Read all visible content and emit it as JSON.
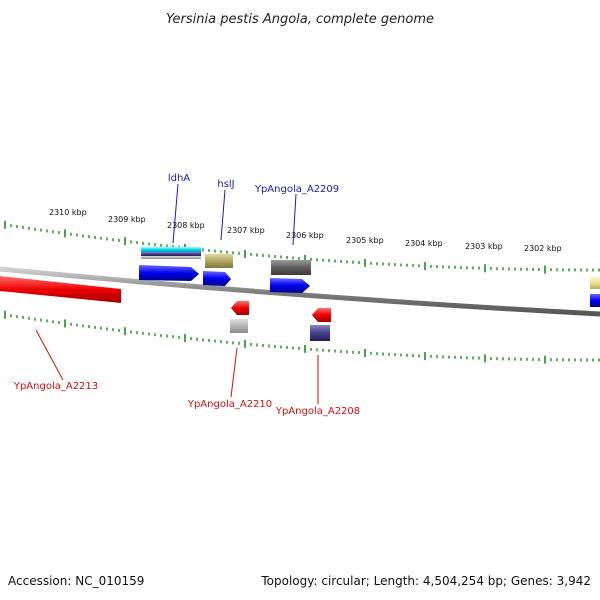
{
  "title": "Yersinia pestis Angola, complete genome",
  "footer": {
    "accession": "Accession: NC_010159",
    "summary": "Topology: circular; Length: 4,504,254 bp; Genes: 3,942"
  },
  "ruler": {
    "labels": [
      "2310 kbp",
      "2309 kbp",
      "2308 kbp",
      "2307 kbp",
      "2306 kbp",
      "2305 kbp",
      "2304 kbp",
      "2303 kbp",
      "2302 kbp"
    ]
  },
  "genes": {
    "top": [
      {
        "label": "ldhA",
        "color": "#1a1ab8"
      },
      {
        "label": "hslJ",
        "color": "#1a1ab8"
      },
      {
        "label": "YpAngola_A2209",
        "color": "#1a1ab8"
      }
    ],
    "bottom": [
      {
        "label": "YpAngola_A2213",
        "color": "#cc1111"
      },
      {
        "label": "YpAngola_A2210",
        "color": "#cc1111"
      },
      {
        "label": "YpAngola_A2208",
        "color": "#cc1111"
      }
    ]
  },
  "colors": {
    "backbone": "#8a8a8a",
    "forward_strand": "#0000ee",
    "reverse_strand": "#ee0000",
    "ticks": "#1f8a1f"
  }
}
